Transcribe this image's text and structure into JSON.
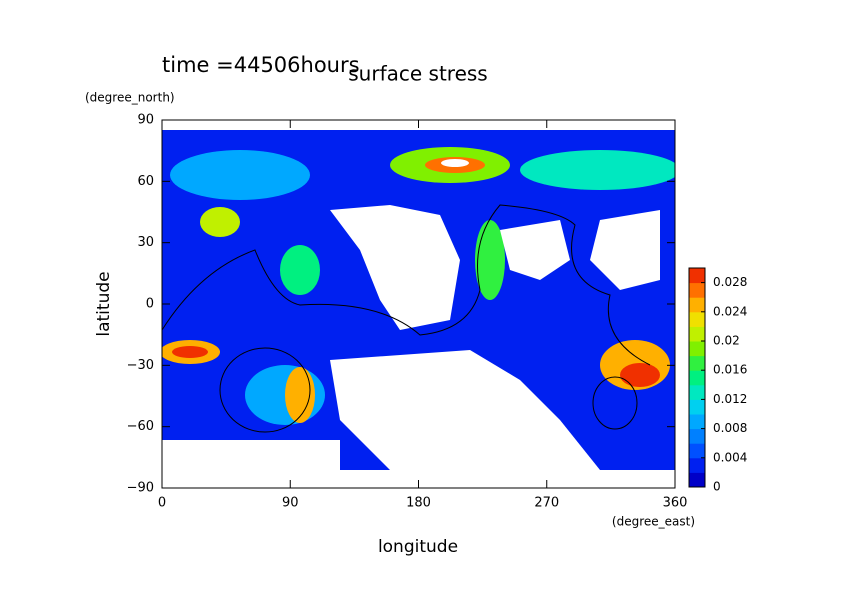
{
  "chart_data": {
    "type": "contour",
    "title": "surface stress",
    "subtitle": "time =44506hours",
    "y_unit": "(degree_north)",
    "x_unit": "(degree_east)",
    "xlabel": "longitude",
    "ylabel": "latitude",
    "xlim": [
      0,
      360
    ],
    "xticks": [
      0,
      90,
      180,
      270,
      360
    ],
    "ylim": [
      -90,
      90
    ],
    "yticks": [
      {
        "value": -90,
        "label": "−90"
      },
      {
        "value": -60,
        "label": "−60"
      },
      {
        "value": -30,
        "label": "−30"
      },
      0,
      30,
      60,
      90
    ],
    "clim": [
      0,
      0.03
    ],
    "cticks": [
      0,
      0.004,
      0.008,
      0.012,
      0.016,
      0.02,
      0.024,
      0.028
    ],
    "colormap": [
      "#0000c8",
      "#0020f0",
      "#0050ff",
      "#0080ff",
      "#00a8ff",
      "#00d0f0",
      "#00e8c0",
      "#00f080",
      "#30f040",
      "#80f000",
      "#c0f000",
      "#f0e000",
      "#ffb000",
      "#ff7000",
      "#f03000"
    ]
  }
}
